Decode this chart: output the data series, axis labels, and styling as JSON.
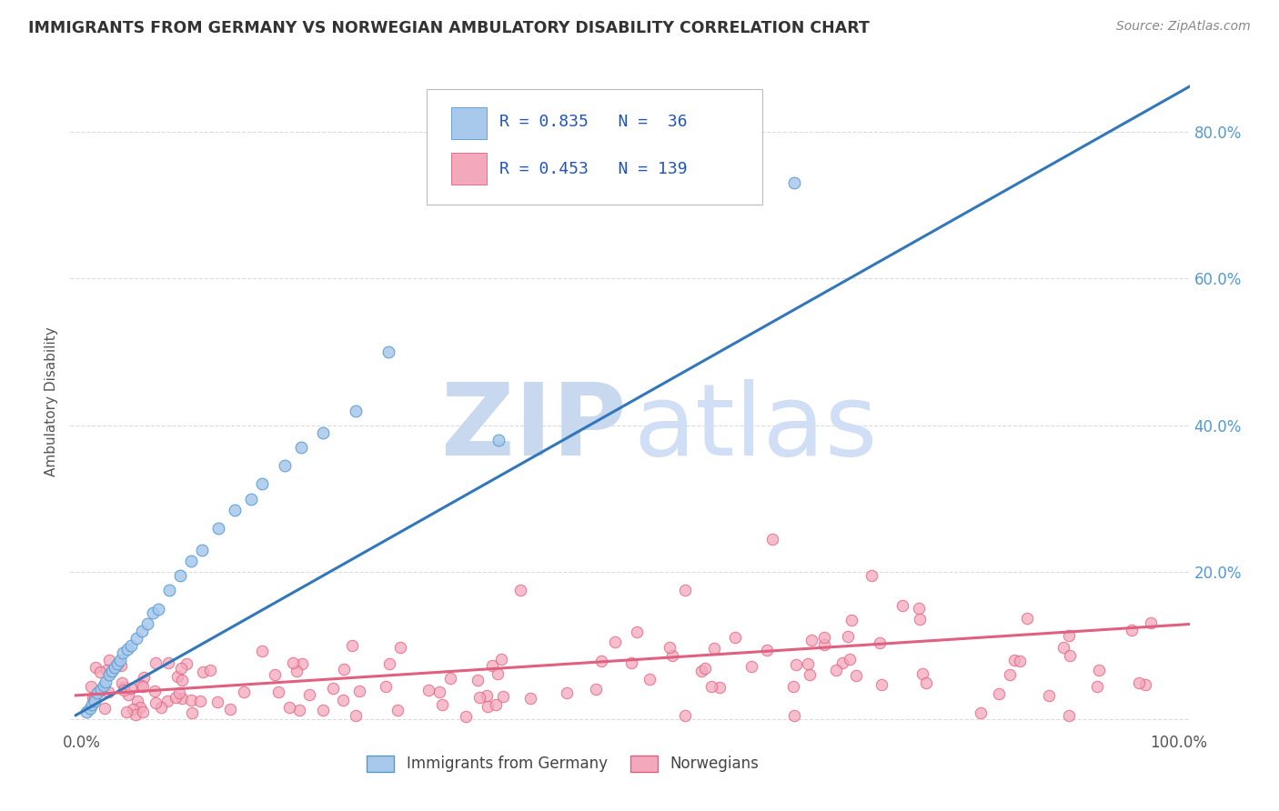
{
  "title": "IMMIGRANTS FROM GERMANY VS NORWEGIAN AMBULATORY DISABILITY CORRELATION CHART",
  "source": "Source: ZipAtlas.com",
  "ylabel": "Ambulatory Disability",
  "color_blue_fill": "#A8C8EC",
  "color_blue_edge": "#5599CC",
  "color_pink_fill": "#F4A8BC",
  "color_pink_edge": "#E06080",
  "color_blue_line": "#3377BB",
  "color_pink_line": "#E06080",
  "watermark_zip_color": "#C8D8EE",
  "watermark_atlas_color": "#D0DFF5",
  "background_color": "#FFFFFF",
  "grid_color": "#CCCCCC",
  "title_color": "#333333",
  "right_tick_color": "#5599CC",
  "legend_r1": "R = 0.835",
  "legend_n1": "N =  36",
  "legend_r2": "R = 0.453",
  "legend_n2": "N = 139",
  "blue_line_x0": -0.005,
  "blue_line_x1": 1.02,
  "blue_line_y0": 0.005,
  "blue_line_y1": 0.87,
  "pink_line_x0": -0.005,
  "pink_line_x1": 1.02,
  "pink_line_y0": 0.032,
  "pink_line_y1": 0.13,
  "ylim_max": 0.88,
  "ylim_min": -0.015,
  "xlim_min": -0.01,
  "xlim_max": 1.01
}
